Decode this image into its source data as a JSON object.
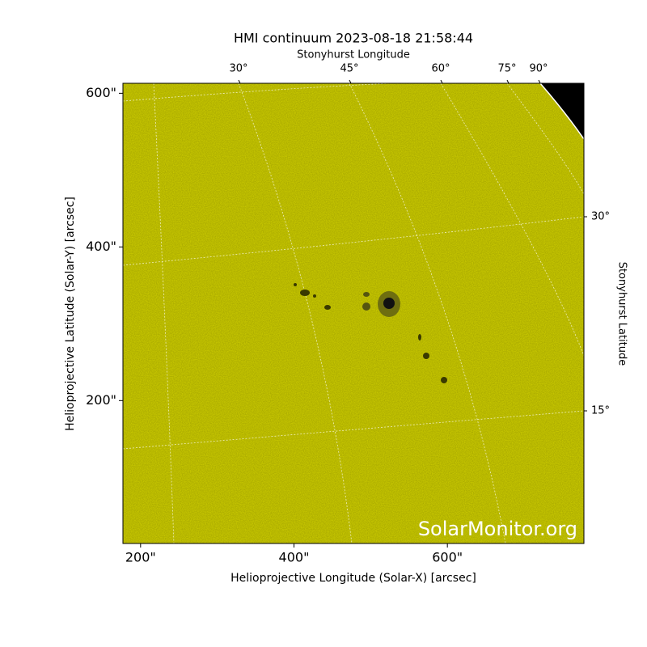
{
  "chart_data": {
    "type": "image",
    "title": "HMI continuum 2023-08-18 21:58:44",
    "xlabel": "Helioprojective Longitude (Solar-X) [arcsec]",
    "ylabel": "Helioprojective Latitude (Solar-Y) [arcsec]",
    "top_label": "Stonyhurst Longitude",
    "right_label": "Stonyhurst Latitude",
    "xlim": [
      177,
      778
    ],
    "ylim": [
      14,
      613
    ],
    "xticks": [
      {
        "value": 200,
        "label": "200\""
      },
      {
        "value": 400,
        "label": "400\""
      },
      {
        "value": 600,
        "label": "600\""
      }
    ],
    "yticks": [
      {
        "value": 200,
        "label": "200\""
      },
      {
        "value": 400,
        "label": "400\""
      },
      {
        "value": 600,
        "label": "600\""
      }
    ],
    "lon_ticks": [
      {
        "value": 30,
        "label": "30°"
      },
      {
        "value": 45,
        "label": "45°"
      },
      {
        "value": 60,
        "label": "60°"
      },
      {
        "value": 75,
        "label": "75°"
      },
      {
        "value": 90,
        "label": "90°"
      }
    ],
    "lat_ticks": [
      {
        "value": 15,
        "label": "15°"
      },
      {
        "value": 30,
        "label": "30°"
      }
    ],
    "watermark": "SolarMonitor.org",
    "color": "#c8c800"
  }
}
